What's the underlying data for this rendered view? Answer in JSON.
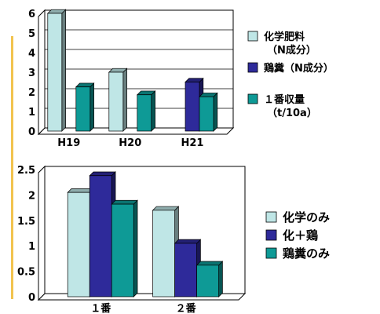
{
  "palette": {
    "accent_bar": "#F2C34E",
    "light_cyan": "#BFE6E6",
    "navy": "#2E2A9A",
    "teal": "#0E9A96",
    "gridline": "#000000",
    "axis": "#000000"
  },
  "chart_data": [
    {
      "type": "bar",
      "title": "",
      "xlabel": "",
      "ylabel": "",
      "categories": [
        "H19",
        "H20",
        "H21"
      ],
      "ylim": [
        0,
        6
      ],
      "yticks": [
        "0",
        "1",
        "2",
        "3",
        "4",
        "5",
        "6"
      ],
      "grid": true,
      "legend": "right",
      "series": [
        {
          "name": "化学肥料\n（N成分）",
          "color_key": "light_cyan",
          "values": [
            6,
            3,
            0
          ]
        },
        {
          "name": "鶏糞（N成分）",
          "color_key": "navy",
          "values": [
            0,
            0,
            2.5
          ]
        },
        {
          "name": "１番収量\n（t/10a）",
          "color_key": "teal",
          "values": [
            2.25,
            1.85,
            1.75
          ]
        }
      ]
    },
    {
      "type": "bar",
      "title": "",
      "xlabel": "",
      "ylabel": "",
      "categories": [
        "１番",
        "２番"
      ],
      "ylim": [
        0,
        2.5
      ],
      "yticks": [
        "0",
        "0.5",
        "1",
        "1.5",
        "2",
        "2.5"
      ],
      "grid": false,
      "legend": "right",
      "series": [
        {
          "name": "化学のみ",
          "color_key": "light_cyan",
          "values": [
            2.05,
            1.7
          ]
        },
        {
          "name": "化＋鶏",
          "color_key": "navy",
          "values": [
            2.38,
            1.05
          ]
        },
        {
          "name": "鶏糞のみ",
          "color_key": "teal",
          "values": [
            1.82,
            0.62
          ]
        }
      ]
    }
  ]
}
